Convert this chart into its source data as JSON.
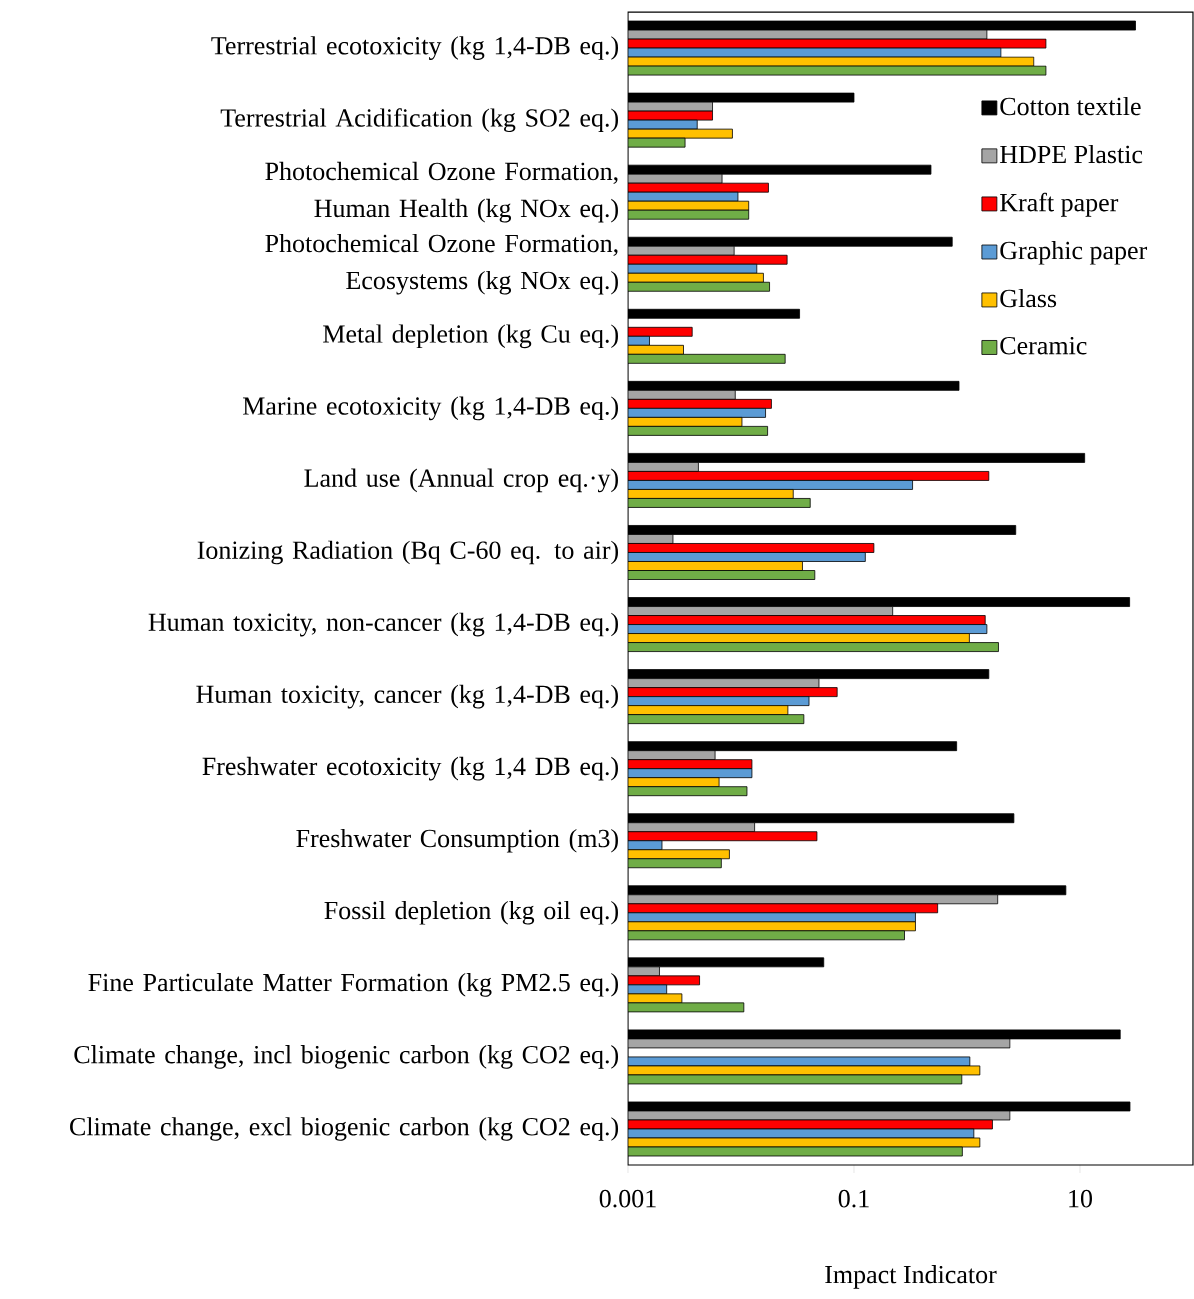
{
  "chart_data": {
    "type": "bar",
    "orientation": "horizontal",
    "log": "x",
    "legend": "right",
    "grid": false,
    "xlabel": "Impact Indicator",
    "xlim": [
      0.001,
      100
    ],
    "xticks": [
      0.001,
      0.1,
      10
    ],
    "categories": [
      "Terrestrial ecotoxicity (kg 1,4-DB eq.)",
      "Terrestrial Acidification (kg SO2 eq.)",
      "Photochemical Ozone Formation, Human Health (kg NOx eq.)",
      "Photochemical Ozone Formation, Ecosystems (kg NOx eq.)",
      "Metal depletion (kg Cu eq.)",
      "Marine ecotoxicity (kg 1,4-DB eq.)",
      "Land use (Annual crop eq.·y)",
      "Ionizing Radiation (Bq C-60 eq. to air)",
      "Human toxicity, non-cancer (kg 1,4-DB eq.)",
      "Human toxicity, cancer (kg 1,4-DB eq.)",
      "Freshwater ecotoxicity (kg 1,4 DB eq.)",
      "Freshwater Consumption (m3)",
      "Fossil depletion (kg oil eq.)",
      "Fine Particulate Matter Formation (kg PM2.5 eq.)",
      "Climate change, incl biogenic carbon (kg CO2 eq.)",
      "Climate change, excl biogenic carbon (kg CO2 eq.)"
    ],
    "series": [
      {
        "name": "Cotton textile",
        "color": "#000000",
        "values": [
          31,
          0.1,
          0.48,
          0.74,
          0.033,
          0.85,
          11,
          2.7,
          27.5,
          1.56,
          0.81,
          2.6,
          7.5,
          0.054,
          22.7,
          27.7
        ]
      },
      {
        "name": "HDPE Plastic",
        "color": "#a5a5a5",
        "values": [
          1.5,
          0.0056,
          0.0068,
          0.0087,
          null,
          0.0089,
          0.0042,
          0.0025,
          0.22,
          0.049,
          0.0059,
          0.0132,
          1.87,
          0.0019,
          2.4,
          2.4
        ]
      },
      {
        "name": "Kraft paper",
        "color": "#ff0000",
        "values": [
          5,
          0.0056,
          0.0175,
          0.0256,
          0.0037,
          0.0186,
          1.56,
          0.15,
          1.45,
          0.071,
          0.0125,
          0.047,
          0.55,
          0.0043,
          null,
          1.68
        ]
      },
      {
        "name": "Graphic paper",
        "color": "#5b9bd5",
        "values": [
          2,
          0.0041,
          0.0094,
          0.0138,
          0.00155,
          0.0165,
          0.33,
          0.126,
          1.5,
          0.04,
          0.0125,
          0.002,
          0.35,
          0.0022,
          1.06,
          1.15
        ]
      },
      {
        "name": "Glass",
        "color": "#ffc000",
        "values": [
          3.9,
          0.0084,
          0.0117,
          0.0158,
          0.0031,
          0.0102,
          0.029,
          0.035,
          1.05,
          0.026,
          0.0064,
          0.0079,
          0.35,
          0.003,
          1.3,
          1.3
        ]
      },
      {
        "name": "Ceramic",
        "color": "#70ad47",
        "values": [
          5,
          0.0032,
          0.0117,
          0.0179,
          0.0246,
          0.0172,
          0.041,
          0.045,
          1.9,
          0.036,
          0.0113,
          0.0067,
          0.28,
          0.0106,
          0.9,
          0.91
        ]
      }
    ]
  }
}
